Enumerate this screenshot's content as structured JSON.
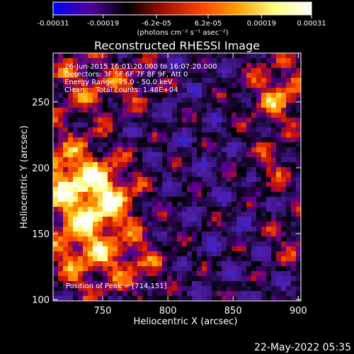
{
  "colorbar": {
    "tick_labels": [
      "-0.00031",
      "-0.00019",
      "-6.2e-05",
      "6.2e-05",
      "0.00019",
      "0.00031"
    ],
    "tick_values": [
      -0.00031,
      -0.00019,
      -6.2e-05,
      6.2e-05,
      0.00019,
      0.00031
    ],
    "range": [
      -0.00031,
      0.00031
    ],
    "unit_label": "(photons cm⁻² s⁻¹ asec⁻²)",
    "colors": [
      "#0000ff",
      "#5000a0",
      "#000000",
      "#a01000",
      "#ff4000",
      "#ffa000",
      "#ffff80",
      "#ffffff"
    ]
  },
  "chart_data": {
    "type": "heatmap",
    "title": "Reconstructed RHESSI Image",
    "xlabel": "Heliocentric X (arcsec)",
    "ylabel": "Heliocentric Y (arcsec)",
    "xlim": [
      712,
      902
    ],
    "ylim": [
      99,
      287
    ],
    "x_ticks": [
      750,
      800,
      850,
      900
    ],
    "y_ticks": [
      100,
      150,
      200,
      250
    ],
    "annotations": [
      "26-Jun-2015 16:01:20.000 to 16:07:20.000",
      "Detectors: 3F 5F 6F 7F 8F 9F, Att 0",
      "Energy Range: 25.0 - 50.0 keV",
      "Clean     Total counts: 1.48E+04"
    ],
    "peak_label": "Position of Peak = [714,151]",
    "peak": [
      714,
      151
    ],
    "grid": false
  },
  "footer": {
    "timestamp": "22-May-2022 05:35"
  }
}
